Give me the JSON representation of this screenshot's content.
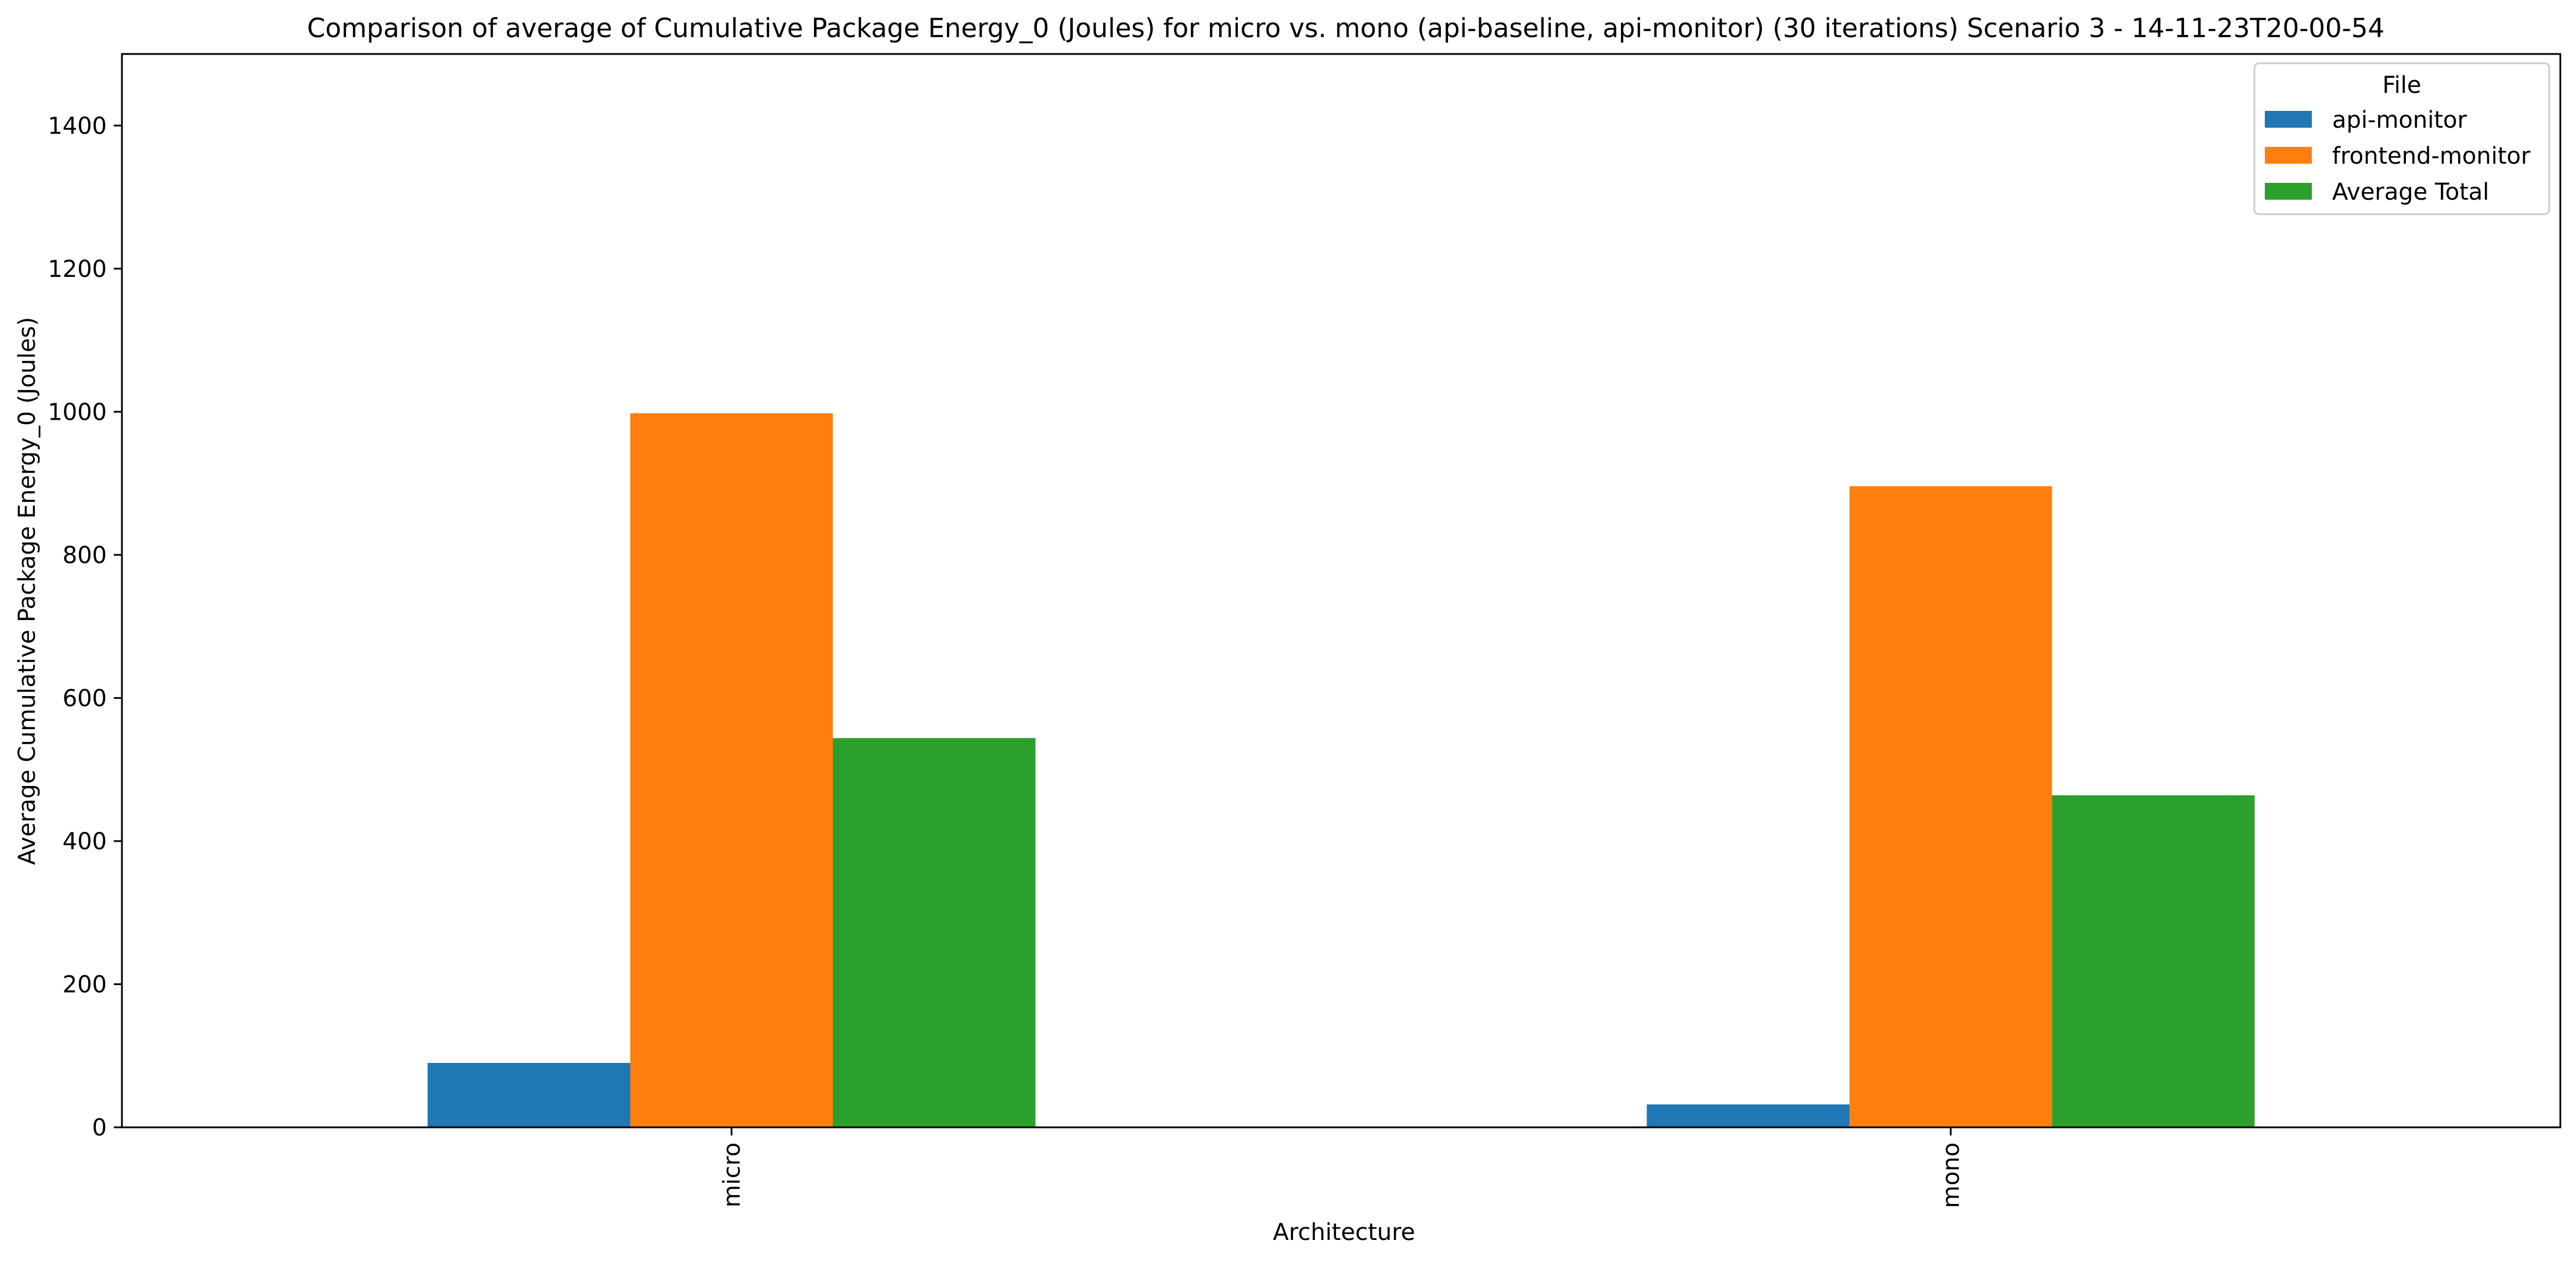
{
  "chart_data": {
    "type": "bar",
    "title": "Comparison of average of Cumulative Package Energy_0 (Joules) for micro vs. mono (api-baseline, api-monitor) (30 iterations) Scenario 3 - 14-11-23T20-00-54",
    "xlabel": "Architecture",
    "ylabel": "Average Cumulative Package Energy_0 (Joules)",
    "categories": [
      "micro",
      "mono"
    ],
    "ylim": [
      0,
      1500
    ],
    "yticks": [
      0,
      200,
      400,
      600,
      800,
      1000,
      1200,
      1400
    ],
    "grid": false,
    "legend": {
      "title": "File",
      "placement": "top-right"
    },
    "series": [
      {
        "name": "api-monitor",
        "color": "#1f77b4",
        "values": [
          90,
          32
        ]
      },
      {
        "name": "frontend-monitor",
        "color": "#ff7f0e",
        "values": [
          998,
          896
        ]
      },
      {
        "name": "Average Total",
        "color": "#2ca02c",
        "values": [
          544,
          464
        ]
      }
    ]
  }
}
